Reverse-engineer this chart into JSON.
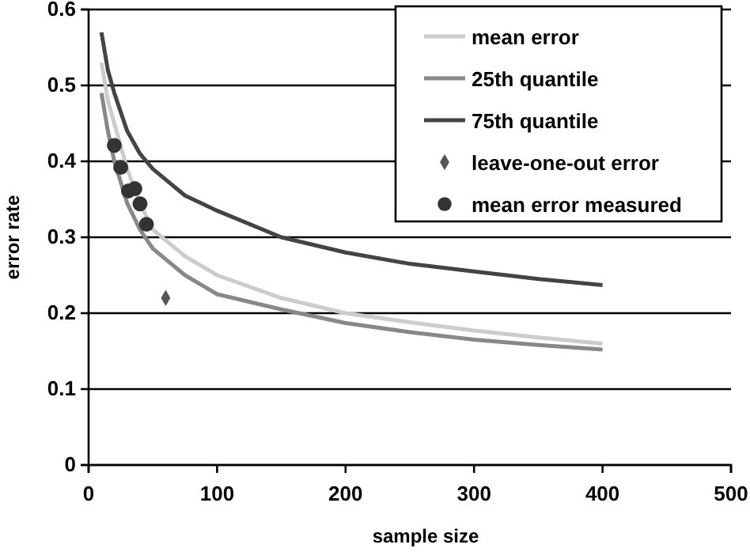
{
  "chart_data": {
    "type": "line",
    "xlabel": "sample size",
    "ylabel": "error rate",
    "xlim": [
      0,
      500
    ],
    "xticks": [
      0,
      100,
      200,
      300,
      400,
      500
    ],
    "ylim": [
      0,
      0.6
    ],
    "yticks": [
      0,
      0.1,
      0.2,
      0.3,
      0.4,
      0.5,
      0.6
    ],
    "grid": "y",
    "legend": "top right",
    "marker": "none",
    "series": [
      {
        "name": "mean error",
        "color": "#cccccc",
        "x": [
          10,
          15,
          20,
          30,
          40,
          50,
          75,
          100,
          150,
          200,
          250,
          300,
          350,
          400
        ],
        "values": [
          0.53,
          0.48,
          0.45,
          0.39,
          0.345,
          0.31,
          0.275,
          0.25,
          0.22,
          0.2,
          0.188,
          0.177,
          0.168,
          0.16
        ]
      },
      {
        "name": "25th quantile",
        "color": "#888888",
        "x": [
          10,
          15,
          20,
          30,
          40,
          50,
          75,
          100,
          150,
          200,
          250,
          300,
          350,
          400
        ],
        "values": [
          0.49,
          0.44,
          0.4,
          0.345,
          0.31,
          0.285,
          0.25,
          0.225,
          0.205,
          0.187,
          0.175,
          0.165,
          0.158,
          0.152
        ]
      },
      {
        "name": "75th quantile",
        "color": "#444444",
        "x": [
          10,
          15,
          20,
          30,
          40,
          50,
          75,
          100,
          150,
          200,
          250,
          300,
          350,
          400
        ],
        "values": [
          0.57,
          0.52,
          0.49,
          0.44,
          0.41,
          0.39,
          0.355,
          0.335,
          0.3,
          0.28,
          0.265,
          0.255,
          0.245,
          0.237
        ]
      },
      {
        "name": "leave-one-out error",
        "type": "scatter",
        "marker": "diamond",
        "color": "#555555",
        "x": [
          60
        ],
        "values": [
          0.22
        ]
      },
      {
        "name": "mean error measured",
        "type": "scatter",
        "marker": "circle",
        "color": "#333333",
        "x": [
          20,
          25,
          31,
          36,
          40,
          45
        ],
        "values": [
          0.421,
          0.392,
          0.361,
          0.364,
          0.344,
          0.317
        ]
      }
    ]
  }
}
